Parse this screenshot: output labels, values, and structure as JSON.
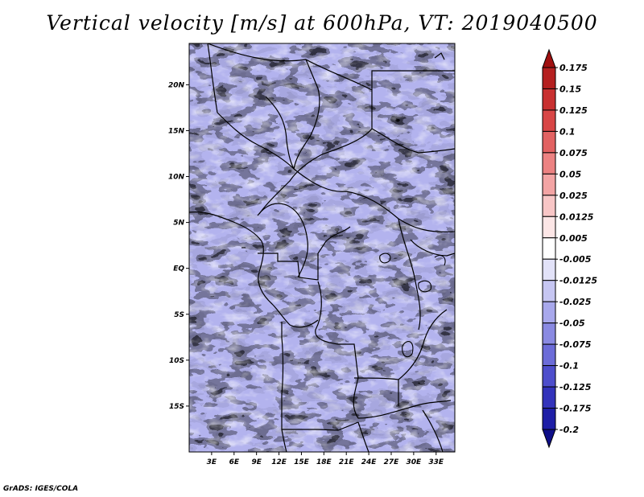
{
  "title": "Vertical velocity [m/s] at 600hPa, VT: 2019040500",
  "credit": "GrADS: IGES/COLA",
  "map": {
    "type": "filled-contour-map",
    "field": "vertical velocity",
    "units": "m/s",
    "level": "600hPa",
    "valid_time": "2019040500",
    "lat_range": [
      -20,
      24.5
    ],
    "lon_range": [
      0,
      35.5
    ],
    "lat_ticks": [
      "20N",
      "15N",
      "10N",
      "5N",
      "EQ",
      "5S",
      "10S",
      "15S"
    ],
    "lat_values": [
      20,
      15,
      10,
      5,
      0,
      -5,
      -10,
      -15
    ],
    "lon_ticks": [
      "3E",
      "6E",
      "9E",
      "12E",
      "15E",
      "18E",
      "21E",
      "24E",
      "27E",
      "30E",
      "33E"
    ],
    "lon_values": [
      3,
      6,
      9,
      12,
      15,
      18,
      21,
      24,
      27,
      30,
      33
    ]
  },
  "colorbar": {
    "labels": [
      "0.175",
      "0.15",
      "0.125",
      "0.1",
      "0.075",
      "0.05",
      "0.025",
      "0.0125",
      "0.005",
      "-0.005",
      "-0.0125",
      "-0.025",
      "-0.05",
      "-0.075",
      "-0.1",
      "-0.125",
      "-0.175",
      "-0.2"
    ],
    "colors": [
      "#a01010",
      "#b52020",
      "#c83030",
      "#d84646",
      "#e26262",
      "#ec8282",
      "#f3a4a4",
      "#f8c6c6",
      "#fce6e6",
      "#ffffff",
      "#e2e2f8",
      "#c6c6f2",
      "#a8a8ec",
      "#8a8ae2",
      "#6c6cd8",
      "#4e4ecc",
      "#3333bb",
      "#1e1ea6",
      "#0e0e88"
    ]
  }
}
